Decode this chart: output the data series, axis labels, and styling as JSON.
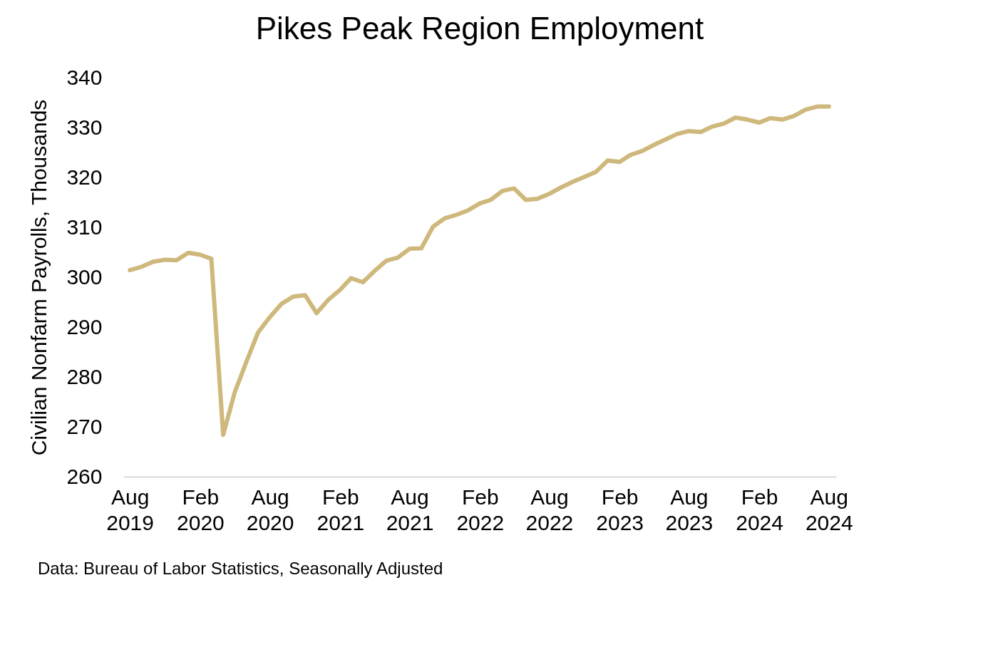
{
  "chart_data": {
    "type": "line",
    "title": "Pikes Peak Region Employment",
    "ylabel": "Civilian Nonfarm Payrolls, Thousands",
    "annotations": [
      "Data: Bureau of Labor Statistics, Seasonally Adjusted"
    ],
    "x": [
      "2019-08",
      "2019-09",
      "2019-10",
      "2019-11",
      "2019-12",
      "2020-01",
      "2020-02",
      "2020-03",
      "2020-04",
      "2020-05",
      "2020-06",
      "2020-07",
      "2020-08",
      "2020-09",
      "2020-10",
      "2020-11",
      "2020-12",
      "2021-01",
      "2021-02",
      "2021-03",
      "2021-04",
      "2021-05",
      "2021-06",
      "2021-07",
      "2021-08",
      "2021-09",
      "2021-10",
      "2021-11",
      "2021-12",
      "2022-01",
      "2022-02",
      "2022-03",
      "2022-04",
      "2022-05",
      "2022-06",
      "2022-07",
      "2022-08",
      "2022-09",
      "2022-10",
      "2022-11",
      "2022-12",
      "2023-01",
      "2023-02",
      "2023-03",
      "2023-04",
      "2023-05",
      "2023-06",
      "2023-07",
      "2023-08",
      "2023-09",
      "2023-10",
      "2023-11",
      "2023-12",
      "2024-01",
      "2024-02",
      "2024-03",
      "2024-04",
      "2024-05",
      "2024-06",
      "2024-07",
      "2024-08"
    ],
    "series": [
      {
        "color": "#cfb87c",
        "values": [
          301.4,
          302.1,
          303.1,
          303.5,
          303.4,
          304.9,
          304.5,
          303.7,
          268.4,
          276.9,
          283.1,
          288.9,
          292.0,
          294.7,
          296.1,
          296.4,
          292.8,
          295.5,
          297.5,
          299.8,
          299.0,
          301.2,
          303.3,
          303.9,
          305.7,
          305.8,
          310.1,
          311.8,
          312.5,
          313.4,
          314.8,
          315.5,
          317.3,
          317.8,
          315.5,
          315.7,
          316.7,
          318.0,
          319.1,
          320.1,
          321.1,
          323.4,
          323.1,
          324.5,
          325.3,
          326.5,
          327.6,
          328.7,
          329.3,
          329.1,
          330.2,
          330.8,
          332.0,
          331.6,
          331.0,
          331.9,
          331.6,
          332.3,
          333.6,
          334.2,
          334.2
        ]
      }
    ],
    "ylim": [
      260,
      340
    ],
    "yticks": [
      260,
      270,
      280,
      290,
      300,
      310,
      320,
      330,
      340
    ],
    "xlim": [
      "2019-07-15",
      "2024-08-20"
    ],
    "xticks": [
      {
        "value": "2019-08",
        "label": "Aug 2019"
      },
      {
        "value": "2020-02",
        "label": "Feb 2020"
      },
      {
        "value": "2020-08",
        "label": "Aug 2020"
      },
      {
        "value": "2021-02",
        "label": "Feb 2021"
      },
      {
        "value": "2021-08",
        "label": "Aug 2021"
      },
      {
        "value": "2022-02",
        "label": "Feb 2022"
      },
      {
        "value": "2022-08",
        "label": "Aug 2022"
      },
      {
        "value": "2023-02",
        "label": "Feb 2023"
      },
      {
        "value": "2023-08",
        "label": "Aug 2023"
      },
      {
        "value": "2024-02",
        "label": "Feb 2024"
      },
      {
        "value": "2024-08",
        "label": "Aug 2024"
      }
    ],
    "grid": false,
    "legend": false,
    "marker": "none",
    "line_style": "solid"
  }
}
